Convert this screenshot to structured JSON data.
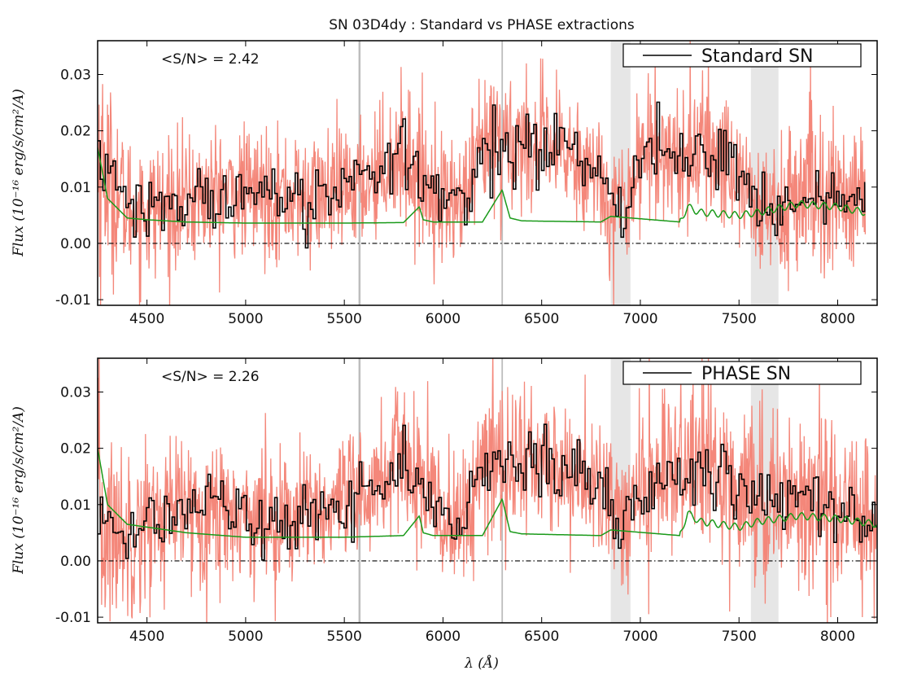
{
  "figure": {
    "title": "SN 03D4dy : Standard vs PHASE extractions",
    "xlabel": "λ (Å)",
    "ylabel": "Flux (10⁻¹⁶ erg/s/cm²/A)"
  },
  "colors": {
    "observed": "#f4877a",
    "binned": "#000000",
    "error": "#1a9a1a",
    "zero_line": "#000000",
    "telluric_band": "#e6e6e6",
    "sky_line": "#bdbdbd"
  },
  "chart_data": [
    {
      "type": "line",
      "panel": "top",
      "legend": "Standard SN",
      "legend_position": "top-right",
      "annotation": "<S/N> = 2.42",
      "xlim": [
        4250,
        8200
      ],
      "ylim": [
        -0.011,
        0.036
      ],
      "xticks": [
        4500,
        5000,
        5500,
        6000,
        6500,
        7000,
        7500,
        8000
      ],
      "xtick_labels": [
        "4500",
        "5000",
        "5500",
        "6000",
        "6500",
        "7000",
        "7500",
        "8000"
      ],
      "yticks": [
        -0.01,
        0.0,
        0.01,
        0.02,
        0.03
      ],
      "ytick_labels": [
        "-0.01",
        "0.00",
        "0.01",
        "0.02",
        "0.03"
      ],
      "x_end": 8140,
      "shaded_bands": [
        [
          6850,
          6950
        ],
        [
          7560,
          7700
        ]
      ],
      "sky_lines": [
        {
          "x": 5577,
          "strength": "strong"
        },
        {
          "x": 6300,
          "strength": "weak"
        }
      ],
      "zero_line": 0.0,
      "series": [
        {
          "name": "binned flux",
          "x": [
            4250,
            4400,
            4500,
            4700,
            4900,
            5100,
            5300,
            5500,
            5600,
            5700,
            5800,
            5900,
            6000,
            6100,
            6200,
            6300,
            6400,
            6500,
            6600,
            6700,
            6800,
            6900,
            7000,
            7100,
            7200,
            7300,
            7400,
            7500,
            7600,
            7700,
            7800,
            7900,
            8000,
            8140
          ],
          "y": [
            0.015,
            0.006,
            0.006,
            0.0075,
            0.009,
            0.009,
            0.008,
            0.009,
            0.011,
            0.014,
            0.016,
            0.011,
            0.008,
            0.007,
            0.016,
            0.018,
            0.018,
            0.017,
            0.016,
            0.015,
            0.011,
            0.005,
            0.016,
            0.017,
            0.015,
            0.017,
            0.015,
            0.013,
            0.005,
            0.006,
            0.009,
            0.009,
            0.008,
            0.008
          ]
        },
        {
          "name": "error spectrum",
          "x": [
            4250,
            4300,
            4400,
            4500,
            4700,
            5000,
            5500,
            5800,
            5880,
            5900,
            5950,
            6200,
            6300,
            6340,
            6400,
            6800,
            6850,
            7200,
            7240,
            7300,
            7500,
            7600,
            7800,
            8000,
            8140
          ],
          "y": [
            0.017,
            0.008,
            0.0045,
            0.0042,
            0.0038,
            0.0036,
            0.0036,
            0.0037,
            0.0065,
            0.0042,
            0.0038,
            0.0038,
            0.0095,
            0.0045,
            0.004,
            0.0038,
            0.0048,
            0.0038,
            0.0065,
            0.0055,
            0.005,
            0.0055,
            0.007,
            0.0065,
            0.0055
          ]
        }
      ]
    },
    {
      "type": "line",
      "panel": "bottom",
      "legend": "PHASE SN",
      "legend_position": "top-right",
      "annotation": "<S/N> = 2.26",
      "xlim": [
        4250,
        8200
      ],
      "ylim": [
        -0.011,
        0.036
      ],
      "xticks": [
        4500,
        5000,
        5500,
        6000,
        6500,
        7000,
        7500,
        8000
      ],
      "xtick_labels": [
        "4500",
        "5000",
        "5500",
        "6000",
        "6500",
        "7000",
        "7500",
        "8000"
      ],
      "yticks": [
        -0.01,
        0.0,
        0.01,
        0.02,
        0.03
      ],
      "ytick_labels": [
        "-0.01",
        "0.00",
        "0.01",
        "0.02",
        "0.03"
      ],
      "x_end": 8200,
      "shaded_bands": [
        [
          6850,
          6950
        ],
        [
          7560,
          7700
        ]
      ],
      "sky_lines": [
        {
          "x": 5577,
          "strength": "strong"
        },
        {
          "x": 6300,
          "strength": "weak"
        }
      ],
      "zero_line": 0.0,
      "series": [
        {
          "name": "binned flux",
          "x": [
            4250,
            4400,
            4500,
            4700,
            4900,
            5100,
            5300,
            5500,
            5600,
            5700,
            5800,
            5900,
            6000,
            6100,
            6200,
            6300,
            6400,
            6500,
            6600,
            6700,
            6800,
            6900,
            7000,
            7100,
            7200,
            7300,
            7400,
            7500,
            7600,
            7700,
            7800,
            7900,
            8000,
            8200
          ],
          "y": [
            0.006,
            0.005,
            0.007,
            0.009,
            0.009,
            0.008,
            0.008,
            0.009,
            0.012,
            0.015,
            0.019,
            0.012,
            0.008,
            0.007,
            0.016,
            0.018,
            0.018,
            0.017,
            0.016,
            0.015,
            0.012,
            0.006,
            0.013,
            0.016,
            0.016,
            0.017,
            0.015,
            0.014,
            0.011,
            0.011,
            0.011,
            0.011,
            0.009,
            0.008
          ]
        },
        {
          "name": "error spectrum",
          "x": [
            4250,
            4300,
            4400,
            4500,
            4700,
            5000,
            5500,
            5800,
            5880,
            5900,
            5950,
            6200,
            6300,
            6340,
            6400,
            6800,
            6850,
            7200,
            7240,
            7300,
            7500,
            7600,
            7800,
            8000,
            8200
          ],
          "y": [
            0.02,
            0.01,
            0.0065,
            0.006,
            0.005,
            0.0042,
            0.0042,
            0.0045,
            0.008,
            0.005,
            0.0045,
            0.0045,
            0.011,
            0.0052,
            0.0048,
            0.0045,
            0.0055,
            0.0045,
            0.0085,
            0.007,
            0.006,
            0.007,
            0.008,
            0.0075,
            0.0065
          ]
        }
      ]
    }
  ]
}
